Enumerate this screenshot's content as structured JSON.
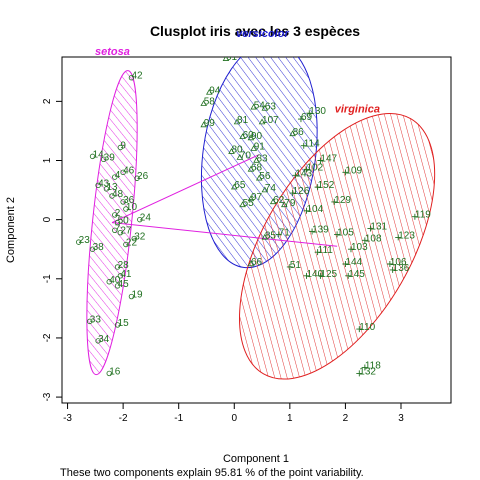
{
  "chart_data": {
    "type": "scatter",
    "title": "Clusplot iris avec les 3 espèces",
    "xlabel": "Component 1",
    "ylabel": "Component 2",
    "footnote": "These two components explain 95.81 % of the point variability.",
    "xlim": [
      -3.1,
      3.9
    ],
    "ylim": [
      -3.1,
      2.75
    ],
    "x_ticks": [
      "-3",
      "-2",
      "-1",
      "0",
      "1",
      "2",
      "3"
    ],
    "y_ticks": [
      "-3",
      "-2",
      "-1",
      "0",
      "1",
      "2"
    ],
    "colors": {
      "setosa": "#e020e0",
      "versicolor": "#2020d0",
      "virginica": "#e02020",
      "points": "#207020",
      "links": "#e020e0"
    },
    "clusters": [
      {
        "label": "setosa",
        "cx": -2.2,
        "cy": -0.05,
        "a": 2.75,
        "b": 0.33,
        "angle_deg": 84
      },
      {
        "label": "versicolor",
        "cx": 0.45,
        "cy": 1.1,
        "a": 2.05,
        "b": 0.95,
        "angle_deg": 82
      },
      {
        "label": "virginica",
        "cx": 1.85,
        "cy": -0.45,
        "a": 2.65,
        "b": 1.25,
        "angle_deg": 60
      }
    ],
    "links": [
      {
        "from": [
          -2.2,
          -0.05
        ],
        "to": [
          0.45,
          1.1
        ]
      },
      {
        "from": [
          -2.2,
          -0.05
        ],
        "to": [
          1.85,
          -0.45
        ]
      }
    ],
    "point_labels": [
      {
        "id": "42",
        "x": -1.85,
        "y": 2.4,
        "g": 0
      },
      {
        "id": "9",
        "x": -2.05,
        "y": 1.22,
        "g": 0
      },
      {
        "id": "14",
        "x": -2.55,
        "y": 1.07,
        "g": 0
      },
      {
        "id": "39",
        "x": -2.35,
        "y": 1.02,
        "g": 0
      },
      {
        "id": "46",
        "x": -2.0,
        "y": 0.8,
        "g": 0
      },
      {
        "id": "26",
        "x": -1.75,
        "y": 0.7,
        "g": 0
      },
      {
        "id": "43",
        "x": -2.45,
        "y": 0.58,
        "g": 0
      },
      {
        "id": "4",
        "x": -2.15,
        "y": 0.72,
        "g": 0
      },
      {
        "id": "13",
        "x": -2.3,
        "y": 0.52,
        "g": 0
      },
      {
        "id": "48",
        "x": -2.2,
        "y": 0.4,
        "g": 0
      },
      {
        "id": "36",
        "x": -2.0,
        "y": 0.3,
        "g": 0
      },
      {
        "id": "10",
        "x": -1.95,
        "y": 0.18,
        "g": 0
      },
      {
        "id": "2",
        "x": -2.15,
        "y": 0.08,
        "g": 0
      },
      {
        "id": "50",
        "x": -2.1,
        "y": -0.05,
        "g": 0
      },
      {
        "id": "24",
        "x": -1.7,
        "y": 0.0,
        "g": 0
      },
      {
        "id": "27",
        "x": -2.05,
        "y": -0.22,
        "g": 0
      },
      {
        "id": "7",
        "x": -2.15,
        "y": -0.18,
        "g": 0
      },
      {
        "id": "23",
        "x": -2.8,
        "y": -0.38,
        "g": 0
      },
      {
        "id": "38",
        "x": -2.55,
        "y": -0.5,
        "g": 0
      },
      {
        "id": "32",
        "x": -1.8,
        "y": -0.32,
        "g": 0
      },
      {
        "id": "22",
        "x": -1.95,
        "y": -0.42,
        "g": 0
      },
      {
        "id": "28",
        "x": -2.1,
        "y": -0.8,
        "g": 0
      },
      {
        "id": "41",
        "x": -2.05,
        "y": -0.95,
        "g": 0
      },
      {
        "id": "40",
        "x": -2.25,
        "y": -1.05,
        "g": 0
      },
      {
        "id": "45",
        "x": -2.1,
        "y": -1.12,
        "g": 0
      },
      {
        "id": "19",
        "x": -1.85,
        "y": -1.3,
        "g": 0
      },
      {
        "id": "33",
        "x": -2.6,
        "y": -1.72,
        "g": 0
      },
      {
        "id": "15",
        "x": -2.1,
        "y": -1.78,
        "g": 0
      },
      {
        "id": "34",
        "x": -2.45,
        "y": -2.05,
        "g": 0
      },
      {
        "id": "16",
        "x": -2.25,
        "y": -2.6,
        "g": 0
      },
      {
        "id": "61",
        "x": -0.15,
        "y": 2.72,
        "g": 1
      },
      {
        "id": "94",
        "x": -0.45,
        "y": 2.15,
        "g": 1
      },
      {
        "id": "58",
        "x": -0.55,
        "y": 1.96,
        "g": 1
      },
      {
        "id": "99",
        "x": -0.55,
        "y": 1.6,
        "g": 1
      },
      {
        "id": "54",
        "x": 0.35,
        "y": 1.9,
        "g": 1
      },
      {
        "id": "63",
        "x": 0.55,
        "y": 1.88,
        "g": 1
      },
      {
        "id": "81",
        "x": 0.05,
        "y": 1.65,
        "g": 1
      },
      {
        "id": "107",
        "x": 0.5,
        "y": 1.65,
        "g": 1
      },
      {
        "id": "60",
        "x": 0.15,
        "y": 1.4,
        "g": 1
      },
      {
        "id": "90",
        "x": 0.3,
        "y": 1.38,
        "g": 1
      },
      {
        "id": "91",
        "x": 0.35,
        "y": 1.2,
        "g": 1
      },
      {
        "id": "80",
        "x": -0.05,
        "y": 1.15,
        "g": 1
      },
      {
        "id": "70",
        "x": 0.1,
        "y": 1.05,
        "g": 1
      },
      {
        "id": "83",
        "x": 0.4,
        "y": 1.0,
        "g": 1
      },
      {
        "id": "68",
        "x": 0.3,
        "y": 0.85,
        "g": 1
      },
      {
        "id": "56",
        "x": 0.45,
        "y": 0.7,
        "g": 1
      },
      {
        "id": "65",
        "x": 0.0,
        "y": 0.55,
        "g": 1
      },
      {
        "id": "74",
        "x": 0.55,
        "y": 0.5,
        "g": 1
      },
      {
        "id": "97",
        "x": 0.3,
        "y": 0.35,
        "g": 1
      },
      {
        "id": "62",
        "x": 0.7,
        "y": 0.3,
        "g": 1
      },
      {
        "id": "79",
        "x": 0.9,
        "y": 0.25,
        "g": 1
      },
      {
        "id": "55",
        "x": 0.15,
        "y": 0.25,
        "g": 1
      },
      {
        "id": "86",
        "x": 1.05,
        "y": 1.45,
        "g": 1
      },
      {
        "id": "85",
        "x": 0.55,
        "y": -0.3,
        "g": 1
      },
      {
        "id": "66",
        "x": 0.3,
        "y": -0.75,
        "g": 1
      },
      {
        "id": "130",
        "x": 1.35,
        "y": 1.8,
        "g": 2
      },
      {
        "id": "69",
        "x": 1.2,
        "y": 1.7,
        "g": 2
      },
      {
        "id": "114",
        "x": 1.25,
        "y": 1.25,
        "g": 2
      },
      {
        "id": "147",
        "x": 1.55,
        "y": 1.0,
        "g": 2
      },
      {
        "id": "102",
        "x": 1.3,
        "y": 0.85,
        "g": 2
      },
      {
        "id": "143",
        "x": 1.1,
        "y": 0.75,
        "g": 2
      },
      {
        "id": "109",
        "x": 2.0,
        "y": 0.8,
        "g": 2
      },
      {
        "id": "152",
        "x": 1.5,
        "y": 0.55,
        "g": 2
      },
      {
        "id": "126",
        "x": 1.05,
        "y": 0.45,
        "g": 2
      },
      {
        "id": "129",
        "x": 1.8,
        "y": 0.3,
        "g": 2
      },
      {
        "id": "104",
        "x": 1.3,
        "y": 0.15,
        "g": 2
      },
      {
        "id": "119",
        "x": 3.25,
        "y": 0.05,
        "g": 2
      },
      {
        "id": "71",
        "x": 0.8,
        "y": -0.25,
        "g": 2
      },
      {
        "id": "139",
        "x": 1.4,
        "y": -0.2,
        "g": 2
      },
      {
        "id": "105",
        "x": 1.85,
        "y": -0.25,
        "g": 2
      },
      {
        "id": "131",
        "x": 2.45,
        "y": -0.15,
        "g": 2
      },
      {
        "id": "123",
        "x": 2.95,
        "y": -0.3,
        "g": 2
      },
      {
        "id": "108",
        "x": 2.35,
        "y": -0.35,
        "g": 2
      },
      {
        "id": "103",
        "x": 2.1,
        "y": -0.5,
        "g": 2
      },
      {
        "id": "111",
        "x": 1.5,
        "y": -0.55,
        "g": 2
      },
      {
        "id": "144",
        "x": 2.0,
        "y": -0.75,
        "g": 2
      },
      {
        "id": "106",
        "x": 2.8,
        "y": -0.75,
        "g": 2
      },
      {
        "id": "136",
        "x": 2.85,
        "y": -0.85,
        "g": 2
      },
      {
        "id": "51",
        "x": 1.0,
        "y": -0.8,
        "g": 2
      },
      {
        "id": "140",
        "x": 1.3,
        "y": -0.95,
        "g": 2
      },
      {
        "id": "125",
        "x": 1.55,
        "y": -0.95,
        "g": 2
      },
      {
        "id": "145",
        "x": 2.05,
        "y": -0.95,
        "g": 2
      },
      {
        "id": "110",
        "x": 2.25,
        "y": -1.85,
        "g": 2
      },
      {
        "id": "118",
        "x": 2.35,
        "y": -2.5,
        "g": 2
      },
      {
        "id": "132",
        "x": 2.25,
        "y": -2.6,
        "g": 2
      }
    ]
  }
}
